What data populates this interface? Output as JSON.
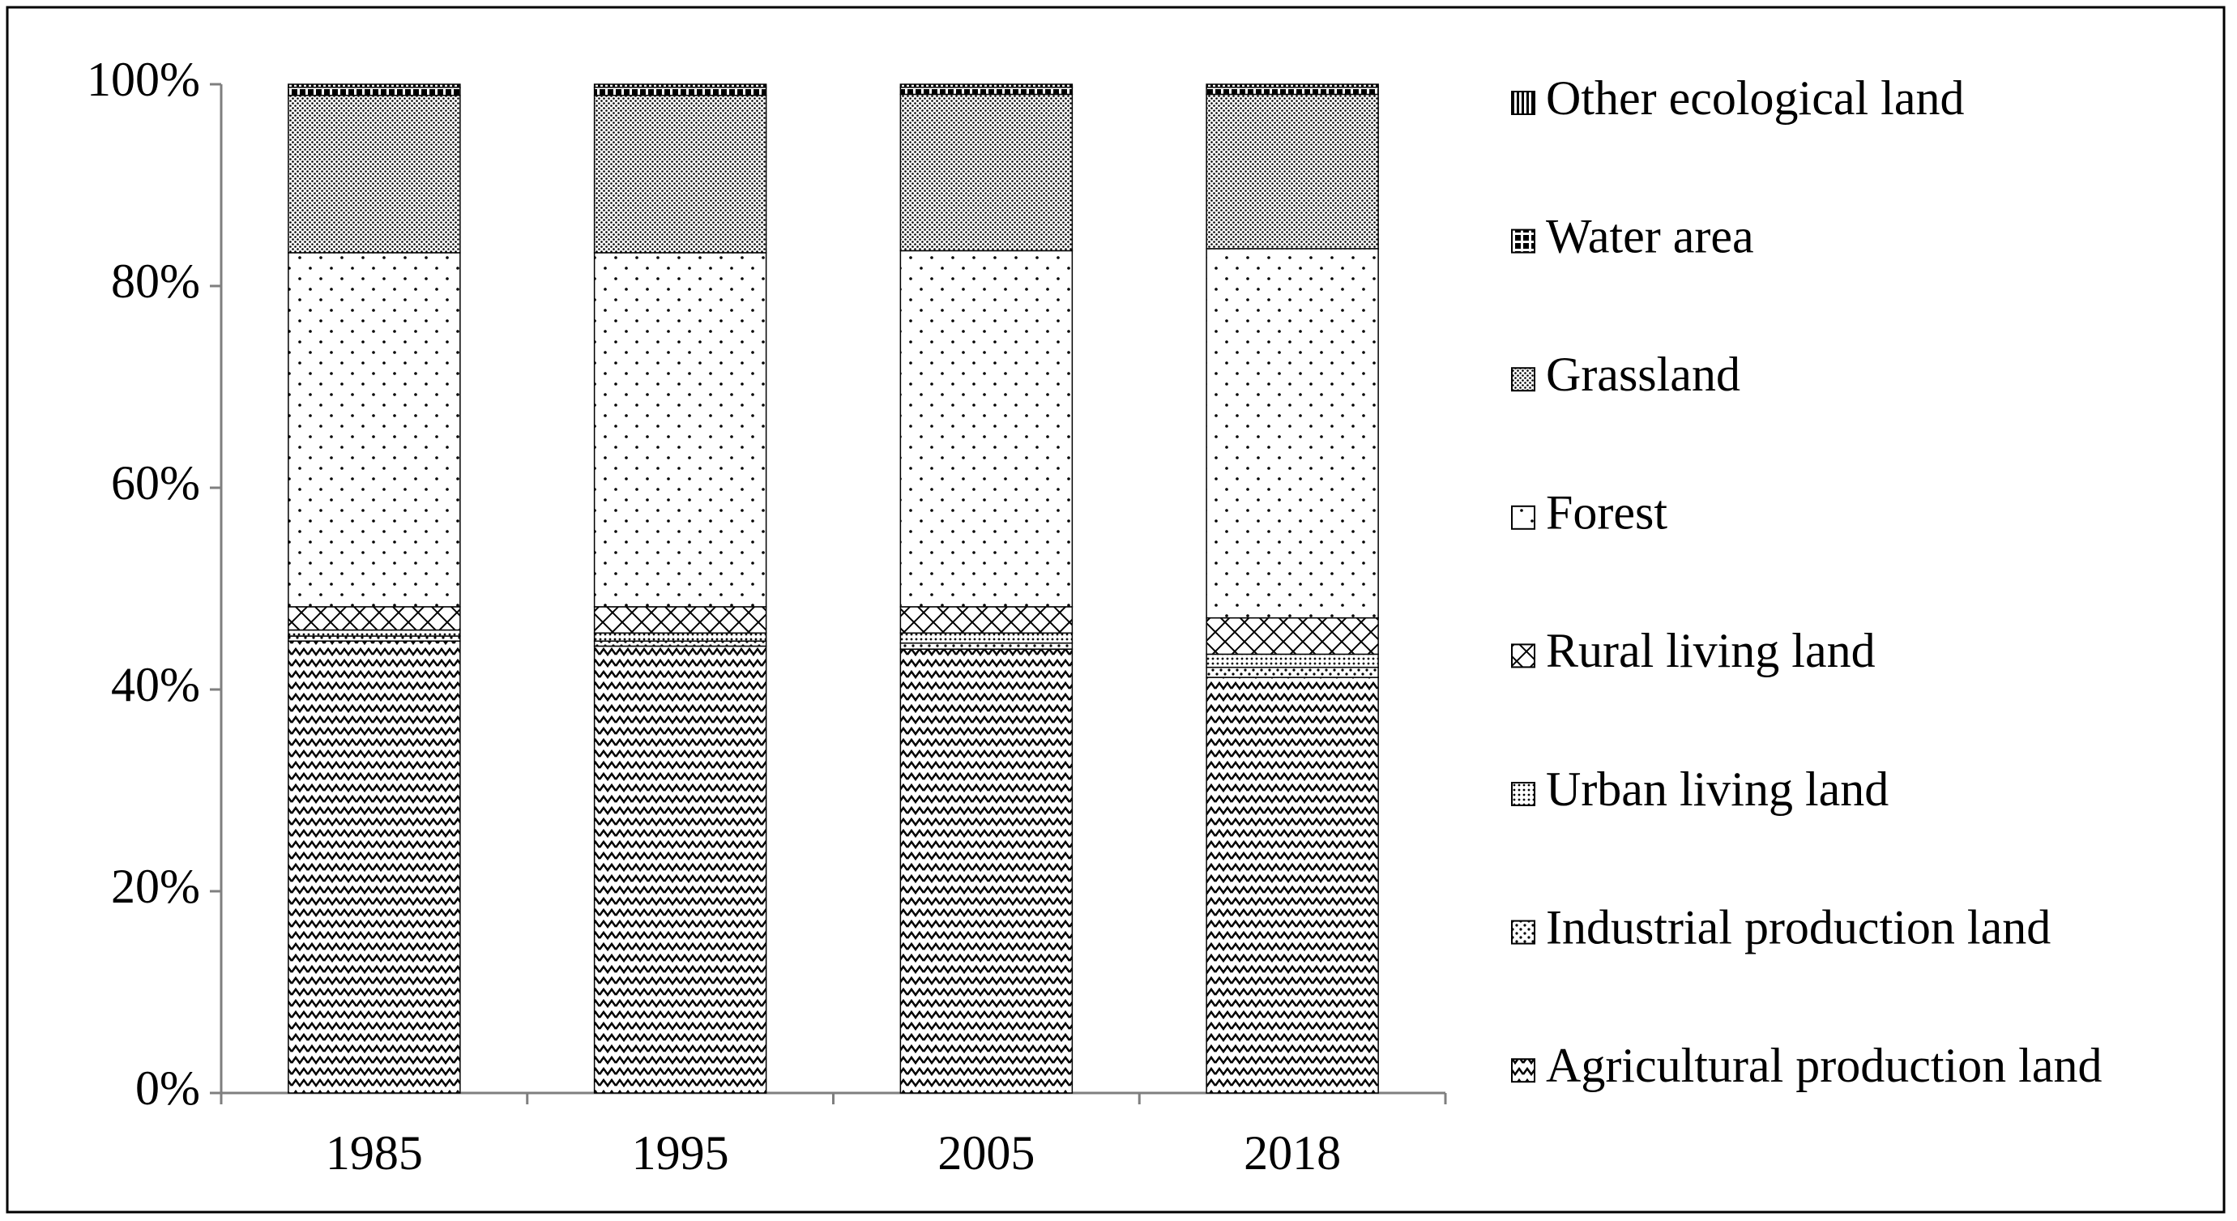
{
  "chart_data": {
    "type": "stacked_bar",
    "categories": [
      "1985",
      "1995",
      "2005",
      "2018"
    ],
    "series": [
      {
        "name": "Agricultural production land",
        "color": "#000000",
        "values": [
          44.8,
          44.3,
          44.0,
          41.2
        ]
      },
      {
        "name": "Industrial production land",
        "color": "#000000",
        "values": [
          0.5,
          0.5,
          0.6,
          1.0
        ]
      },
      {
        "name": "Urban living land",
        "color": "#000000",
        "values": [
          0.6,
          0.8,
          1.0,
          1.3
        ]
      },
      {
        "name": "Rural living land",
        "color": "#000000",
        "values": [
          2.3,
          2.6,
          2.6,
          3.6
        ]
      },
      {
        "name": "Forest",
        "color": "#000000",
        "values": [
          35.1,
          35.1,
          35.3,
          36.6
        ]
      },
      {
        "name": "Grassland",
        "color": "#000000",
        "values": [
          15.6,
          15.6,
          15.5,
          15.3
        ]
      },
      {
        "name": "Water area",
        "color": "#000000",
        "values": [
          0.8,
          0.8,
          0.7,
          0.7
        ]
      },
      {
        "name": "Other ecological land",
        "color": "#000000",
        "values": [
          0.3,
          0.3,
          0.3,
          0.3
        ]
      }
    ],
    "ylim": [
      0,
      100
    ],
    "yticks": [
      {
        "value": 0,
        "label": "0%"
      },
      {
        "value": 20,
        "label": "20%"
      },
      {
        "value": 40,
        "label": "40%"
      },
      {
        "value": 60,
        "label": "60%"
      },
      {
        "value": 80,
        "label": "80%"
      },
      {
        "value": 100,
        "label": "100%"
      }
    ],
    "grid": false,
    "legend": "right"
  }
}
